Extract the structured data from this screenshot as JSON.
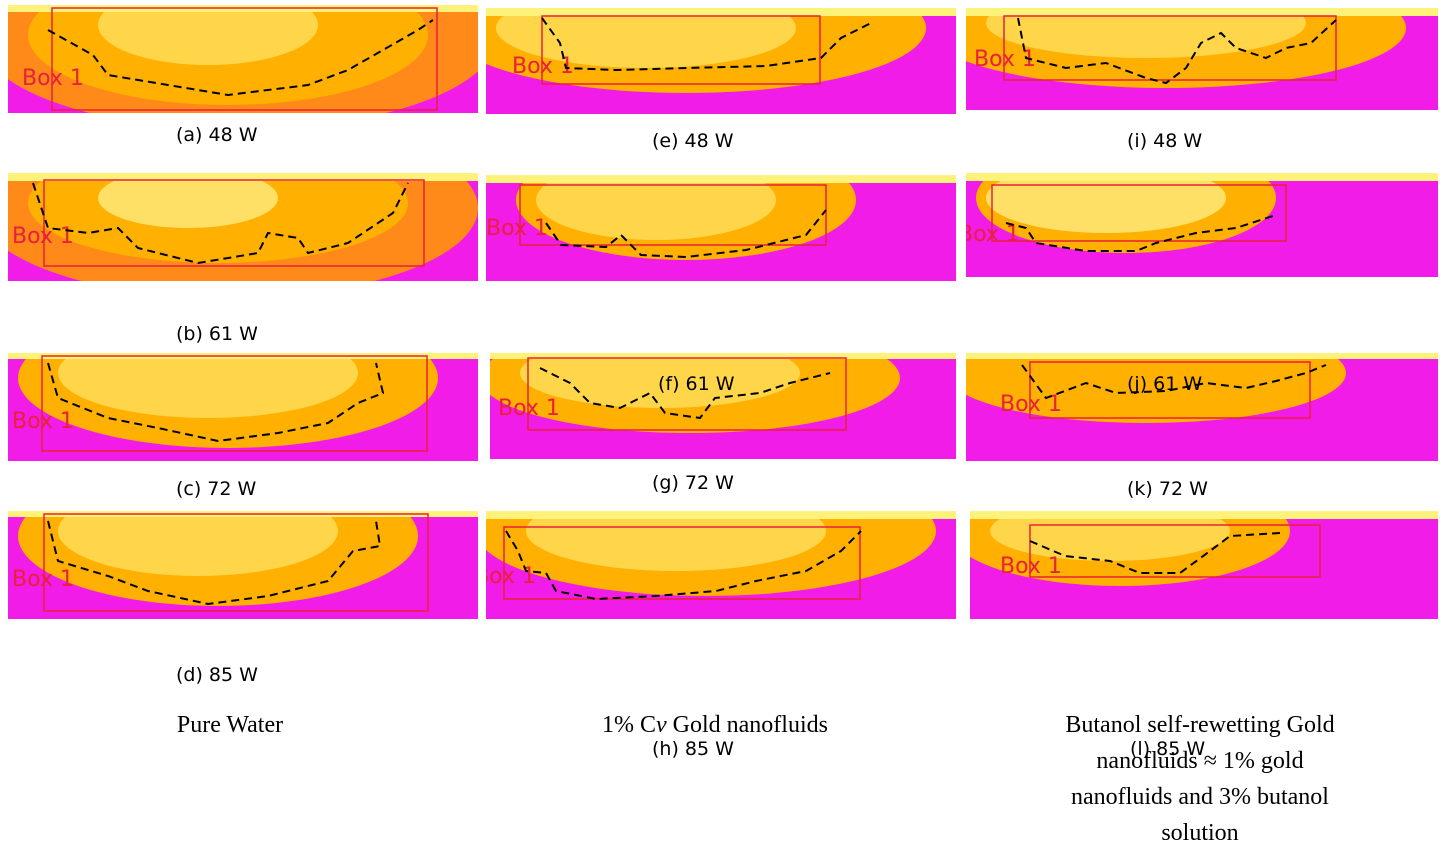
{
  "box_label": "Box 1",
  "colors": {
    "hot": "#fff27a",
    "warm": "#ffb000",
    "cool": "#f21ce8",
    "box": "#e8203a",
    "dash": "#000000"
  },
  "captions": {
    "a": "(a)  48 W",
    "b": "(b)  61 W",
    "c": "(c)  72 W",
    "d": "(d)  85 W",
    "e": "(e) 48 W",
    "f": "(f) 61 W",
    "g": "(g) 72 W",
    "h": "(h) 85 W",
    "i": "(i) 48 W",
    "j": "(j) 61 W",
    "k": "(k) 72 W",
    "l": "(l) 85 W"
  },
  "titles": {
    "col1": "Pure Water",
    "col2_prefix": "1% C",
    "col2_italic": "v",
    "col2_suffix": " Gold nanofluids",
    "col3_line1": "Butanol self-rewetting Gold",
    "col3_line2": "nanofluids ≈ 1% gold",
    "col3_line3": "nanofluids and 3% butanol",
    "col3_line4": "solution"
  }
}
